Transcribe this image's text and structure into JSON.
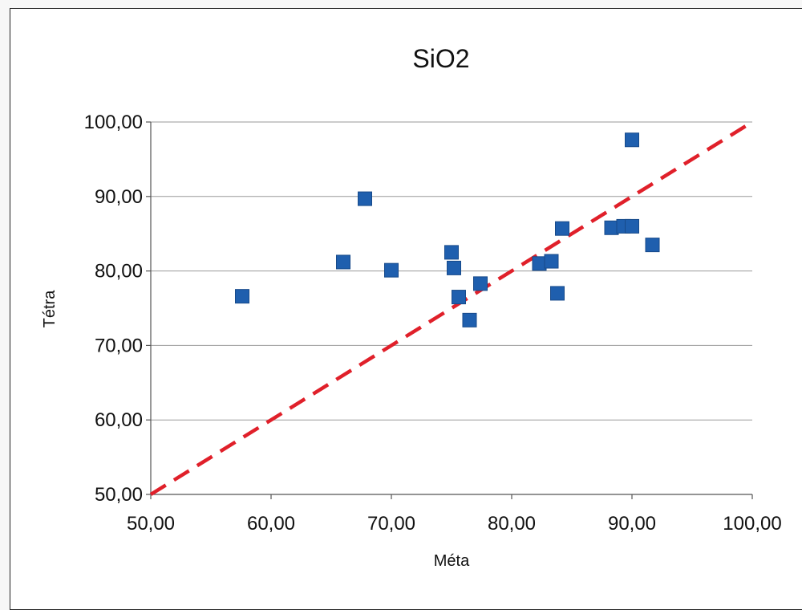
{
  "chart_data": {
    "type": "scatter",
    "title": "SiO2",
    "xlabel": "Méta",
    "ylabel": "Tétra",
    "xlim": [
      50,
      100
    ],
    "ylim": [
      50,
      100
    ],
    "x_ticks": [
      "50,00",
      "60,00",
      "70,00",
      "80,00",
      "90,00",
      "100,00"
    ],
    "y_ticks": [
      "50,00",
      "60,00",
      "70,00",
      "80,00",
      "90,00",
      "100,00"
    ],
    "grid": "horizontal",
    "legend": "none",
    "marker_color": "#1f5fae",
    "reference_line": {
      "style": "dashed",
      "color": "#e0202a",
      "from": [
        50,
        50
      ],
      "to": [
        100,
        100
      ]
    },
    "points": [
      {
        "x": 57.6,
        "y": 76.6
      },
      {
        "x": 66.0,
        "y": 81.2
      },
      {
        "x": 67.8,
        "y": 89.7
      },
      {
        "x": 70.0,
        "y": 80.1
      },
      {
        "x": 75.0,
        "y": 82.5
      },
      {
        "x": 75.2,
        "y": 80.4
      },
      {
        "x": 75.6,
        "y": 76.5
      },
      {
        "x": 76.5,
        "y": 73.4
      },
      {
        "x": 77.4,
        "y": 78.3
      },
      {
        "x": 82.3,
        "y": 81.0
      },
      {
        "x": 83.3,
        "y": 81.3
      },
      {
        "x": 83.8,
        "y": 77.0
      },
      {
        "x": 84.2,
        "y": 85.7
      },
      {
        "x": 88.3,
        "y": 85.8
      },
      {
        "x": 89.3,
        "y": 86.0
      },
      {
        "x": 90.0,
        "y": 86.0
      },
      {
        "x": 90.0,
        "y": 97.6
      },
      {
        "x": 91.7,
        "y": 83.5
      }
    ]
  }
}
